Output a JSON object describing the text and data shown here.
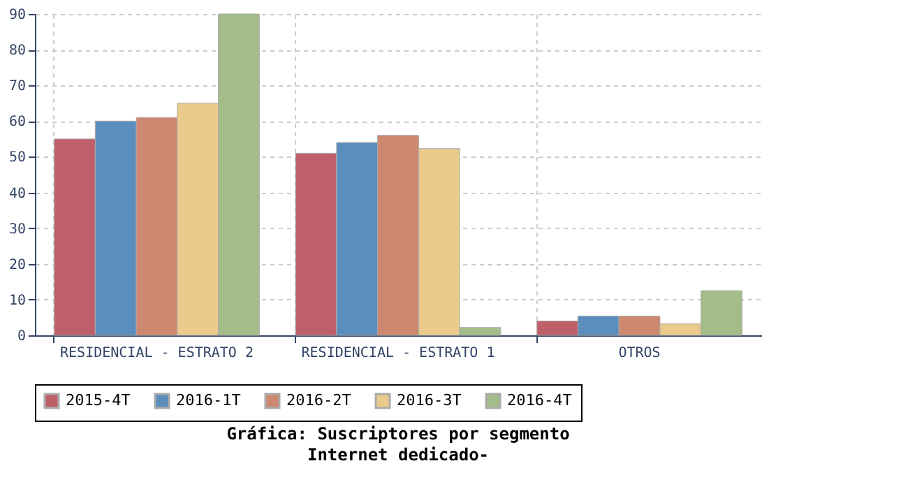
{
  "chart_data": {
    "type": "bar",
    "title": "Gráfica: Suscriptores por segmento",
    "subtitle": "Internet dedicado-",
    "categories": [
      "RESIDENCIAL - ESTRATO 2",
      "RESIDENCIAL - ESTRATO 1",
      "OTROS"
    ],
    "series": [
      {
        "name": "2015-4T",
        "color": "#bf5f6a",
        "values": [
          55,
          51,
          4
        ]
      },
      {
        "name": "2016-1T",
        "color": "#5b8ebd",
        "values": [
          60,
          54,
          5.4
        ]
      },
      {
        "name": "2016-2T",
        "color": "#cf8870",
        "values": [
          61,
          56,
          5.4
        ]
      },
      {
        "name": "2016-3T",
        "color": "#eacb8c",
        "values": [
          65,
          52.3,
          3.2
        ]
      },
      {
        "name": "2016-4T",
        "color": "#a3bd8a",
        "values": [
          90,
          2.2,
          12.5
        ]
      }
    ],
    "ylim": [
      0,
      90
    ],
    "yticks": [
      0,
      10,
      20,
      30,
      40,
      50,
      60,
      70,
      80,
      90
    ],
    "grid": true,
    "legend": "bottom"
  }
}
